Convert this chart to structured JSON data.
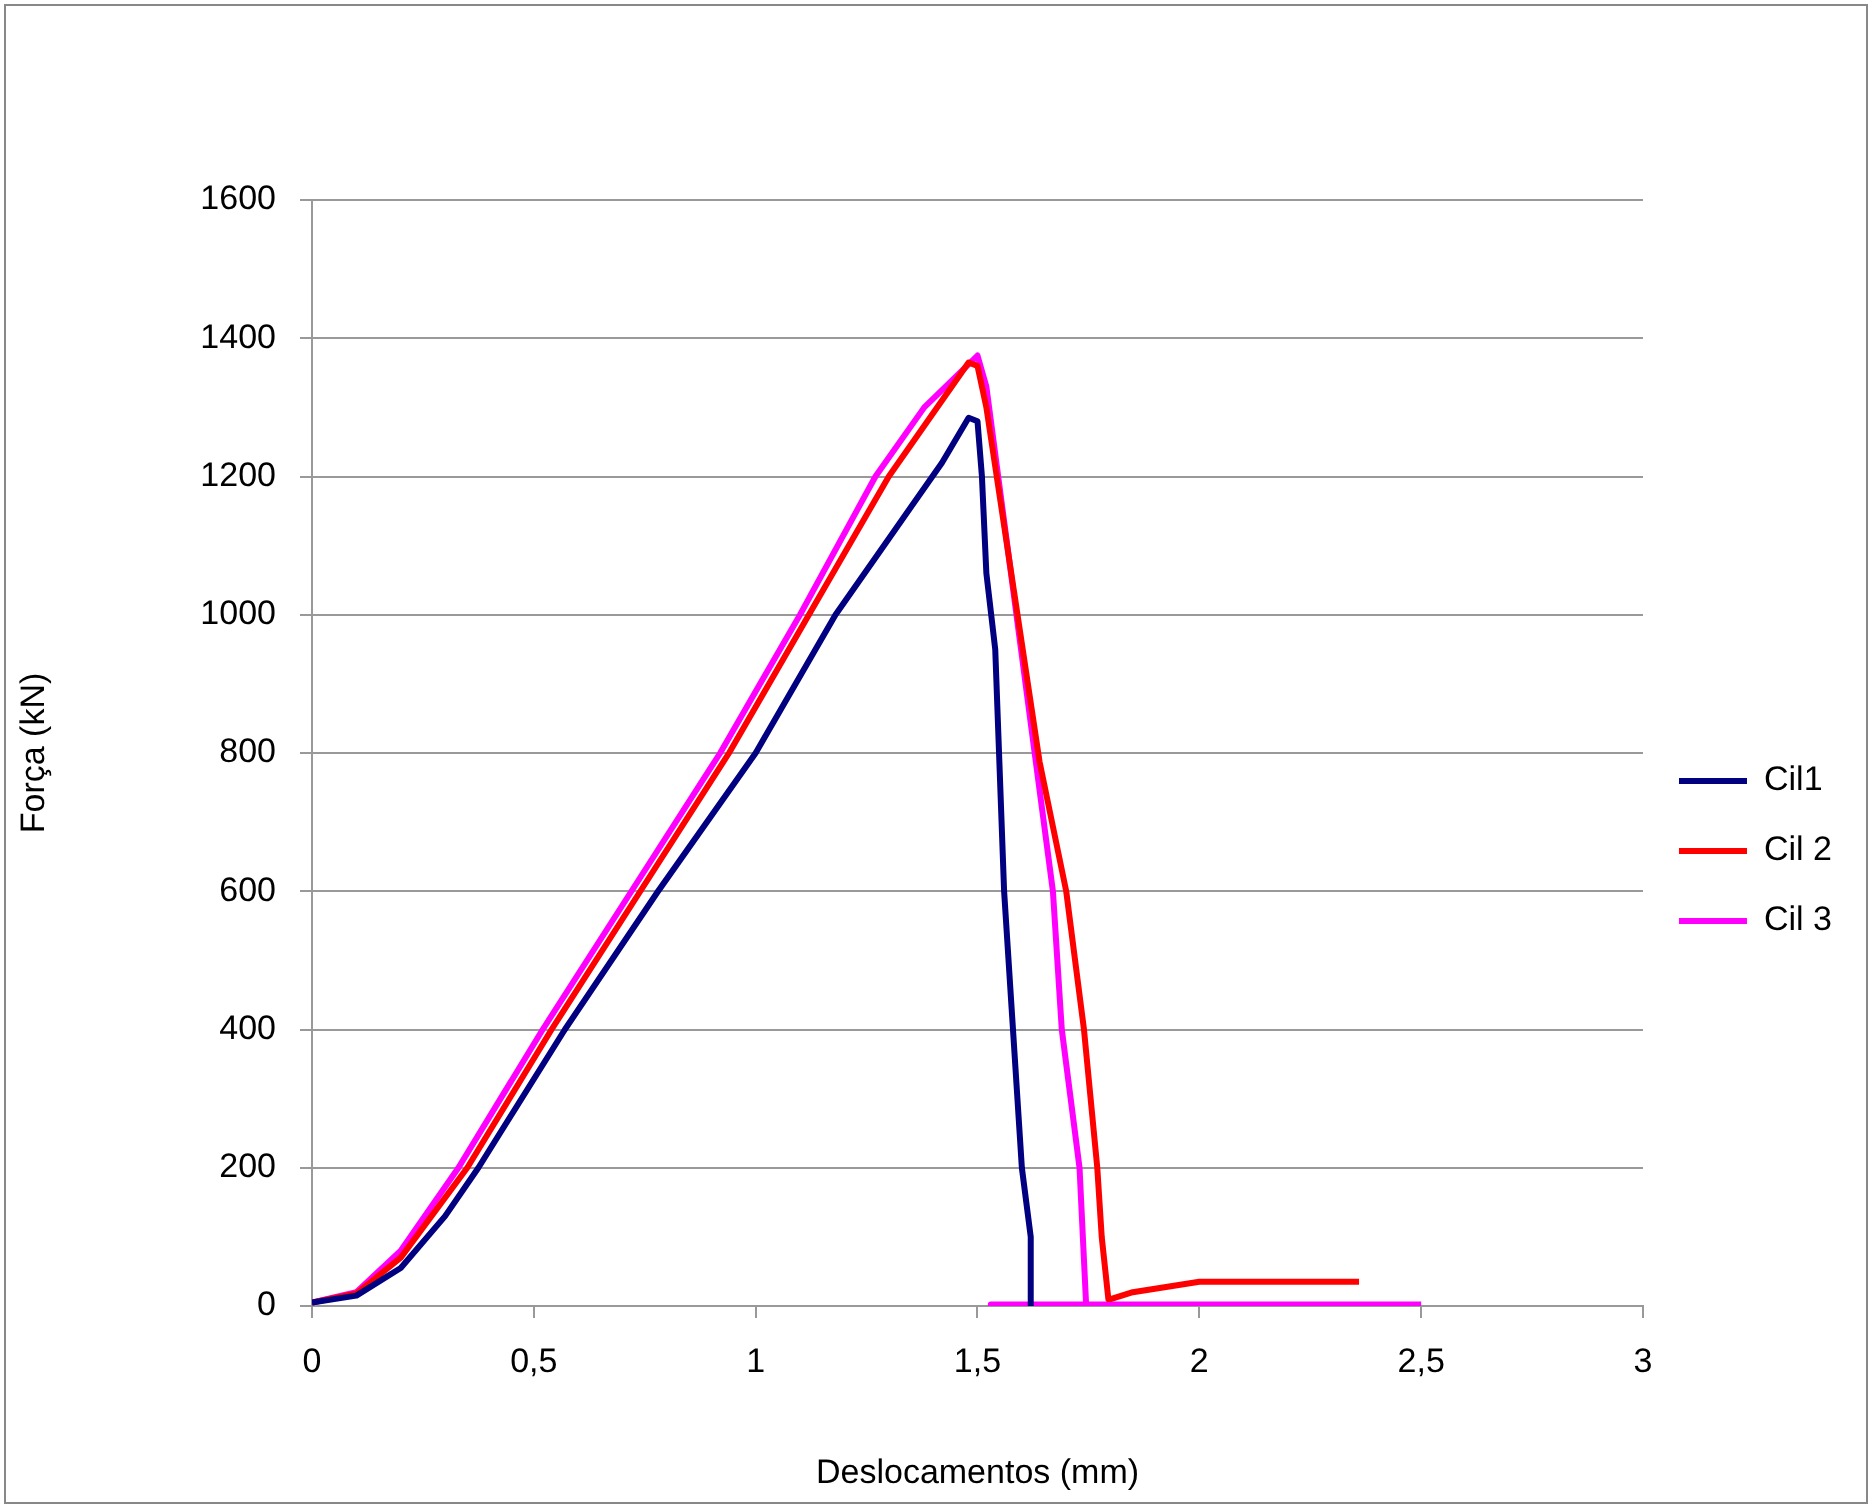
{
  "chart_data": {
    "type": "line",
    "xlabel": "Deslocamentos (mm)",
    "ylabel": "Força (kN)",
    "xlim": [
      0,
      3
    ],
    "xticks": [
      0,
      {
        "value": 0.5,
        "label": "0,5"
      },
      1,
      {
        "value": 1.5,
        "label": "1,5"
      },
      2,
      {
        "value": 2.5,
        "label": "2,5"
      },
      3
    ],
    "ylim": [
      0,
      1600
    ],
    "yticks": [
      0,
      200,
      400,
      600,
      800,
      1000,
      1200,
      1400,
      1600
    ],
    "grid": "y",
    "legend": "right",
    "marker": "none",
    "line_style": "solid",
    "series": [
      {
        "name": "Cil1",
        "color": "#000080",
        "x": [
          0,
          0.1,
          0.2,
          0.3,
          0.375,
          0.57,
          0.78,
          1.0,
          1.18,
          1.3,
          1.42,
          1.48,
          1.5,
          1.51,
          1.52,
          1.54,
          1.56,
          1.6,
          1.62,
          1.62
        ],
        "values": [
          5,
          15,
          55,
          130,
          200,
          400,
          600,
          800,
          1000,
          1110,
          1220,
          1285,
          1280,
          1200,
          1060,
          950,
          600,
          200,
          100,
          0
        ]
      },
      {
        "name": "Cil 2",
        "color": "#ff0000",
        "x": [
          0,
          0.1,
          0.2,
          0.35,
          0.54,
          0.74,
          0.94,
          1.12,
          1.3,
          1.48,
          1.5,
          1.52,
          1.64,
          1.7,
          1.74,
          1.77,
          1.78,
          1.795,
          1.8,
          1.85,
          1.9,
          2.0,
          2.36
        ],
        "values": [
          5,
          18,
          70,
          200,
          400,
          600,
          800,
          1000,
          1200,
          1365,
          1360,
          1300,
          787,
          600,
          400,
          200,
          100,
          10,
          10,
          20,
          25,
          35,
          35
        ]
      },
      {
        "name": "Cil 3",
        "color": "#ff00ff",
        "x": [
          0,
          0.1,
          0.2,
          0.33,
          0.52,
          0.72,
          0.92,
          1.1,
          1.27,
          1.38,
          1.5,
          1.52,
          1.67,
          1.69,
          1.73,
          1.745,
          1.53,
          2.5
        ],
        "values": [
          5,
          20,
          80,
          200,
          400,
          600,
          800,
          1000,
          1200,
          1300,
          1375,
          1330,
          600,
          400,
          200,
          0,
          2,
          2
        ]
      }
    ]
  }
}
